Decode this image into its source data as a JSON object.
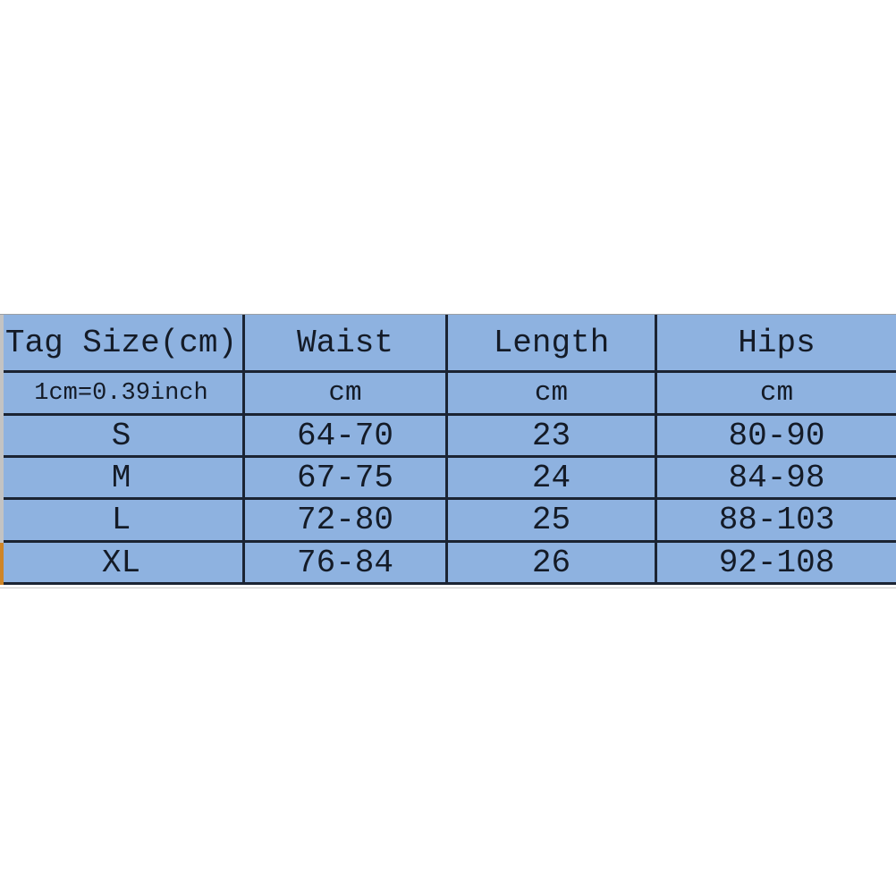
{
  "size_chart": {
    "columns": [
      "Tag Size(cm)",
      "Waist",
      "Length",
      "Hips"
    ],
    "unit_row": {
      "note": "1cm=0.39inch",
      "units": [
        "cm",
        "cm",
        "cm"
      ]
    },
    "rows": [
      {
        "size": "S",
        "waist": "64-70",
        "length": "23",
        "hips": "80-90"
      },
      {
        "size": "M",
        "waist": "67-75",
        "length": "24",
        "hips": "84-98"
      },
      {
        "size": "L",
        "waist": "72-80",
        "length": "25",
        "hips": "88-103"
      },
      {
        "size": "XL",
        "waist": "76-84",
        "length": "26",
        "hips": "92-108"
      }
    ],
    "colors": {
      "table_background": "#8EB2E0",
      "grid_border": "#1b2433",
      "text": "#141b27",
      "page_background": "#ffffff",
      "left_edge_gray": "#c3c3c3",
      "left_edge_orange": "#cf8527"
    }
  },
  "chart_data": {
    "type": "table",
    "title": "Tag Size(cm)",
    "note": "1cm=0.39inch",
    "columns": [
      "Tag Size(cm)",
      "Waist (cm)",
      "Length (cm)",
      "Hips (cm)"
    ],
    "rows": [
      [
        "S",
        "64-70",
        "23",
        "80-90"
      ],
      [
        "M",
        "67-75",
        "24",
        "84-98"
      ],
      [
        "L",
        "72-80",
        "25",
        "88-103"
      ],
      [
        "XL",
        "76-84",
        "26",
        "92-108"
      ]
    ]
  }
}
